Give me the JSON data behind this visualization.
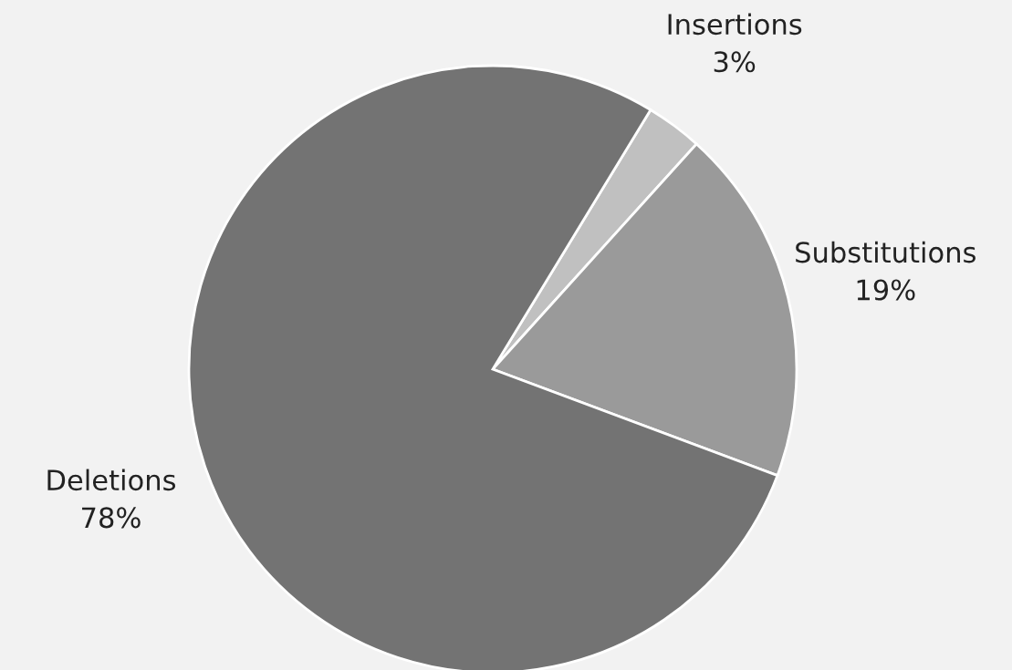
{
  "chart_data": {
    "type": "pie",
    "categories": [
      "Insertions",
      "Substitutions",
      "Deletions"
    ],
    "values": [
      3,
      19,
      78
    ],
    "colors": [
      "#c0c0c0",
      "#9a9a9a",
      "#737373"
    ],
    "value_labels": [
      "3%",
      "19%",
      "78%"
    ]
  }
}
